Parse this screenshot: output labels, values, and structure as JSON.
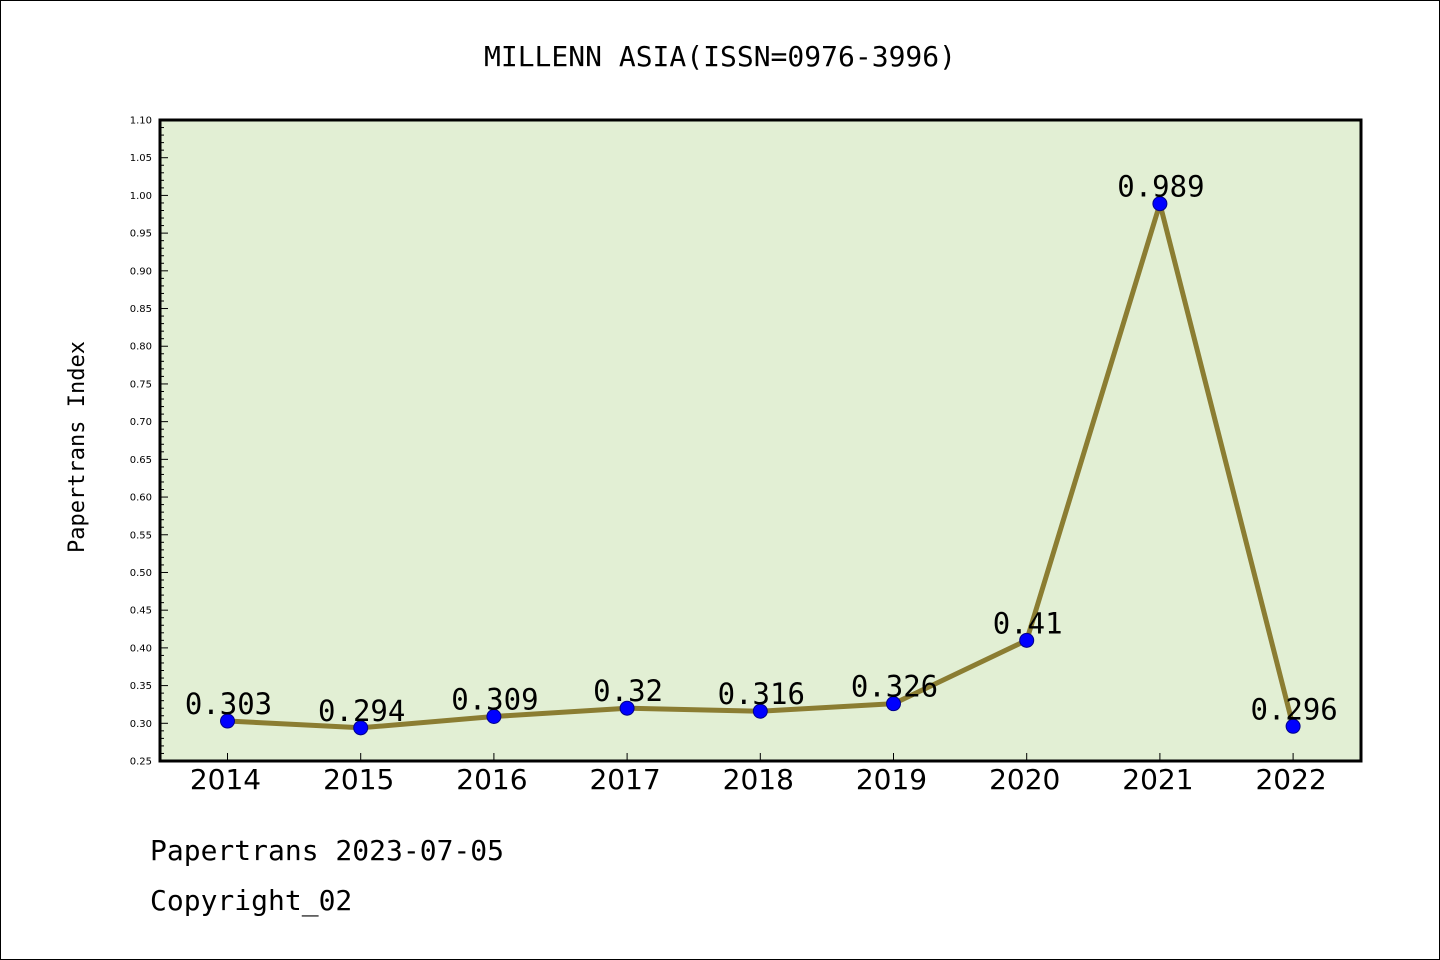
{
  "chart_data": {
    "type": "line",
    "title": "MILLENN ASIA(ISSN=0976-3996)",
    "ylabel": "Papertrans Index",
    "xlabel": "",
    "x": [
      "2014",
      "2015",
      "2016",
      "2017",
      "2018",
      "2019",
      "2020",
      "2021",
      "2022"
    ],
    "series": [
      {
        "values": [
          0.303,
          0.294,
          0.309,
          0.32,
          0.316,
          0.326,
          0.41,
          0.989,
          0.296
        ],
        "labels": [
          "0.303",
          "0.294",
          "0.309",
          "0.32",
          "0.316",
          "0.326",
          "0.41",
          "0.989",
          "0.296"
        ]
      }
    ],
    "ylim": [
      0.25,
      1.1
    ],
    "yticks": [
      "0.25",
      "0.30",
      "0.35",
      "0.40",
      "0.45",
      "0.50",
      "0.55",
      "0.60",
      "0.65",
      "0.70",
      "0.75",
      "0.80",
      "0.85",
      "0.90",
      "0.95",
      "1.00",
      "1.05",
      "1.10"
    ],
    "grid": false,
    "colors": {
      "line": "#8B7D32",
      "marker": "#0000FF",
      "plot_bg": "#E2EFD4"
    }
  },
  "footer": {
    "line1": "Papertrans 2023-07-05",
    "line2": "Copyright_02"
  }
}
